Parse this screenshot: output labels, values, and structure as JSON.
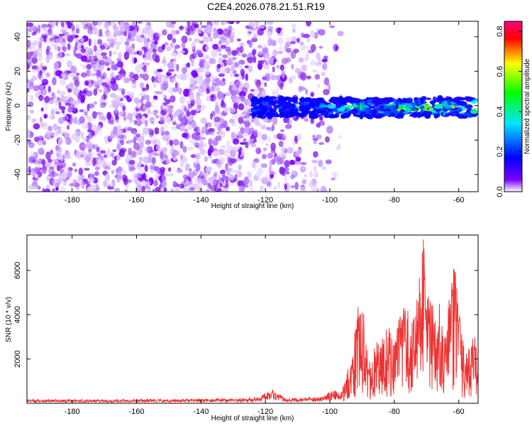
{
  "figure": {
    "title": "C2E4.2026.078.21.51.R19"
  },
  "chart_data": [
    {
      "type": "heatmap",
      "xlabel": "Height of straight line (km)",
      "ylabel": "Frequency (Hz)",
      "xlim": [
        -194,
        -54
      ],
      "ylim": [
        -50,
        49
      ],
      "xticks": [
        -180,
        -160,
        -140,
        -120,
        -100,
        -80,
        -60
      ],
      "yticks": [
        -40,
        -20,
        0,
        20,
        40
      ],
      "grid": false,
      "colorbar": {
        "label": "Normalized spectral amplitude",
        "range": [
          0.0,
          0.85
        ],
        "ticks": [
          0.0,
          0.2,
          0.4,
          0.6,
          0.8
        ],
        "colors": [
          "#ffffff",
          "#7a00ff",
          "#0000ff",
          "#00e6ff",
          "#00ff00",
          "#ffff00",
          "#ff0000",
          "#ff0080"
        ]
      },
      "regions": [
        {
          "name": "noise",
          "x": [
            -194,
            -96
          ],
          "y": [
            -50,
            49
          ],
          "amplitude": 0.05
        },
        {
          "name": "signal band",
          "x": [
            -124,
            -55
          ],
          "y": [
            -5,
            6
          ],
          "center": -1,
          "peak": 0.8
        }
      ]
    },
    {
      "type": "line",
      "xlabel": "Height of straight line (km)",
      "ylabel": "SNR (10 * v/v)",
      "xlim": [
        -194,
        -54
      ],
      "ylim": [
        0,
        7600
      ],
      "xticks": [
        -180,
        -160,
        -140,
        -120,
        -100,
        -80,
        -60
      ],
      "yticks": [
        2000,
        4000,
        6000
      ],
      "grid": false,
      "series": [
        {
          "name": "SNR",
          "color": "#ee3333",
          "x": [
            -194,
            -190,
            -180,
            -170,
            -160,
            -150,
            -140,
            -130,
            -122,
            -118,
            -114,
            -110,
            -106,
            -102,
            -99,
            -97,
            -95,
            -93,
            -91.5,
            -90,
            -88,
            -86,
            -84,
            -82,
            -80,
            -78,
            -76,
            -74,
            -72,
            -71,
            -70,
            -68,
            -66,
            -64,
            -62,
            -61,
            -60,
            -58,
            -56,
            -54
          ],
          "values": [
            120,
            100,
            110,
            100,
            120,
            110,
            130,
            130,
            180,
            430,
            160,
            140,
            170,
            210,
            380,
            300,
            1000,
            2000,
            3800,
            4100,
            1500,
            2300,
            2500,
            3000,
            2600,
            3400,
            3800,
            3200,
            5000,
            7400,
            4200,
            3700,
            4500,
            3000,
            4800,
            5800,
            3600,
            1800,
            2400,
            2700
          ]
        }
      ]
    }
  ]
}
